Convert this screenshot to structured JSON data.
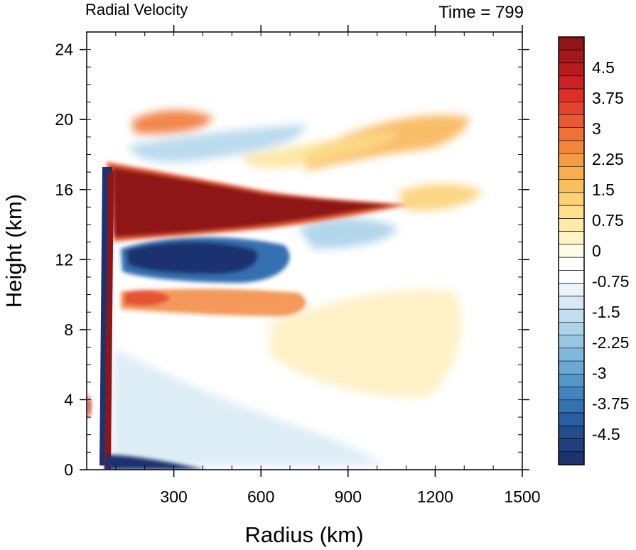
{
  "chart_data": {
    "type": "heatmap",
    "title": "Radial Velocity",
    "time_label": "Time = 799",
    "xlabel": "Radius (km)",
    "ylabel": "Height (km)",
    "xlim": [
      0,
      1500
    ],
    "ylim": [
      0,
      25
    ],
    "xticks": [
      300,
      600,
      900,
      1200,
      1500
    ],
    "xtick_labels": [
      "300",
      "600",
      "900",
      "1200",
      "1500"
    ],
    "yticks": [
      0,
      4,
      8,
      12,
      16,
      20,
      24
    ],
    "ytick_labels": [
      "0",
      "4",
      "8",
      "12",
      "16",
      "20",
      "24"
    ],
    "colorbar": {
      "min": -5.25,
      "max": 5.25,
      "step": 0.25,
      "tick_values": [
        4.5,
        3.75,
        3,
        2.25,
        1.5,
        0.75,
        0,
        -0.75,
        -1.5,
        -2.25,
        -3,
        -3.75,
        -4.5
      ],
      "tick_labels": [
        "4.5",
        "3.75",
        "3",
        "2.25",
        "1.5",
        "0.75",
        "0",
        "-0.75",
        "-1.5",
        "-2.25",
        "-3",
        "-3.75",
        "-4.5"
      ],
      "colors_high_to_low": [
        "#8f1518",
        "#a3171a",
        "#b81b1e",
        "#cc2024",
        "#dc2f2a",
        "#e3442e",
        "#e85a32",
        "#ee7236",
        "#f2873c",
        "#f59c43",
        "#f7b04d",
        "#f9c15e",
        "#fbd173",
        "#fde08c",
        "#feeba8",
        "#fff4c6",
        "#fffbe5",
        "#ffffff",
        "#ffffff",
        "#eaf4fa",
        "#d6eaf5",
        "#c2e0ef",
        "#aed4ea",
        "#97c7e2",
        "#80b9db",
        "#69a9d2",
        "#5497c9",
        "#4383be",
        "#3570b0",
        "#2b5ea1",
        "#244d90",
        "#203f7f",
        "#1d3370"
      ]
    },
    "features": [
      {
        "name": "outflow jet",
        "sign": "positive",
        "r_range": [
          110,
          1150
        ],
        "z_range": [
          12.8,
          17.6
        ],
        "peak": 5.25
      },
      {
        "name": "upper inflow",
        "sign": "negative",
        "r_range": [
          150,
          620
        ],
        "z_range": [
          10.6,
          13.4
        ],
        "peak": -5.25
      },
      {
        "name": "low-level inflow",
        "sign": "negative",
        "r_range": [
          60,
          460
        ],
        "z_range": [
          0,
          1.0
        ],
        "peak": -5.25
      },
      {
        "name": "mid-level outflow",
        "sign": "positive",
        "r_range": [
          100,
          900
        ],
        "z_range": [
          8.8,
          10.6
        ],
        "peak": 3.0
      },
      {
        "name": "upper-level outflow band",
        "sign": "positive",
        "r_range": [
          150,
          1300
        ],
        "z_range": [
          18.5,
          21
        ],
        "peak": 3.0
      }
    ]
  }
}
